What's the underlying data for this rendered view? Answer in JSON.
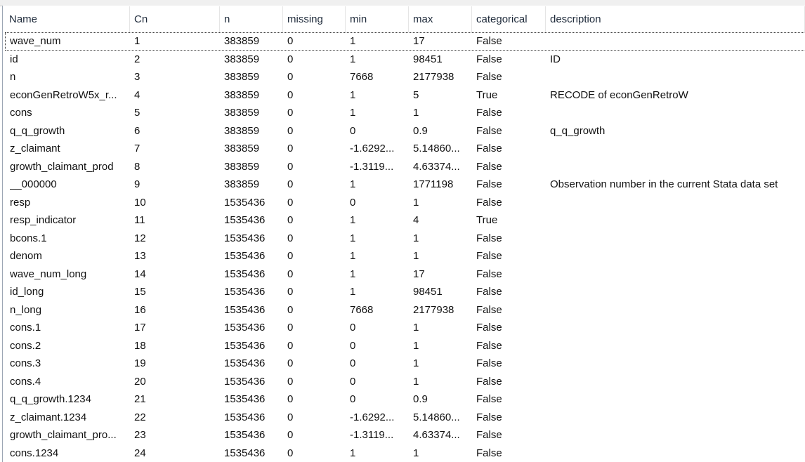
{
  "columns": [
    "Name",
    "Cn",
    "n",
    "missing",
    "min",
    "max",
    "categorical",
    "description"
  ],
  "rows": [
    [
      "wave_num",
      "1",
      "383859",
      "0",
      "1",
      "17",
      "False",
      ""
    ],
    [
      "id",
      "2",
      "383859",
      "0",
      "1",
      "98451",
      "False",
      "ID"
    ],
    [
      "n",
      "3",
      "383859",
      "0",
      "7668",
      "2177938",
      "False",
      ""
    ],
    [
      "econGenRetroW5x_r...",
      "4",
      "383859",
      "0",
      "1",
      "5",
      "True",
      "RECODE of econGenRetroW"
    ],
    [
      "cons",
      "5",
      "383859",
      "0",
      "1",
      "1",
      "False",
      ""
    ],
    [
      "q_q_growth",
      "6",
      "383859",
      "0",
      "0",
      "0.9",
      "False",
      "q_q_growth"
    ],
    [
      "z_claimant",
      "7",
      "383859",
      "0",
      "-1.6292...",
      "5.14860...",
      "False",
      ""
    ],
    [
      "growth_claimant_prod",
      "8",
      "383859",
      "0",
      "-1.3119...",
      "4.63374...",
      "False",
      ""
    ],
    [
      "__000000",
      "9",
      "383859",
      "0",
      "1",
      "1771198",
      "False",
      "Observation number in the current Stata data set"
    ],
    [
      "resp",
      "10",
      "1535436",
      "0",
      "0",
      "1",
      "False",
      ""
    ],
    [
      "resp_indicator",
      "11",
      "1535436",
      "0",
      "1",
      "4",
      "True",
      ""
    ],
    [
      "bcons.1",
      "12",
      "1535436",
      "0",
      "1",
      "1",
      "False",
      ""
    ],
    [
      "denom",
      "13",
      "1535436",
      "0",
      "1",
      "1",
      "False",
      ""
    ],
    [
      "wave_num_long",
      "14",
      "1535436",
      "0",
      "1",
      "17",
      "False",
      ""
    ],
    [
      "id_long",
      "15",
      "1535436",
      "0",
      "1",
      "98451",
      "False",
      ""
    ],
    [
      "n_long",
      "16",
      "1535436",
      "0",
      "7668",
      "2177938",
      "False",
      ""
    ],
    [
      "cons.1",
      "17",
      "1535436",
      "0",
      "0",
      "1",
      "False",
      ""
    ],
    [
      "cons.2",
      "18",
      "1535436",
      "0",
      "0",
      "1",
      "False",
      ""
    ],
    [
      "cons.3",
      "19",
      "1535436",
      "0",
      "0",
      "1",
      "False",
      ""
    ],
    [
      "cons.4",
      "20",
      "1535436",
      "0",
      "0",
      "1",
      "False",
      ""
    ],
    [
      "q_q_growth.1234",
      "21",
      "1535436",
      "0",
      "0",
      "0.9",
      "False",
      ""
    ],
    [
      "z_claimant.1234",
      "22",
      "1535436",
      "0",
      "-1.6292...",
      "5.14860...",
      "False",
      ""
    ],
    [
      "growth_claimant_pro...",
      "23",
      "1535436",
      "0",
      "-1.3119...",
      "4.63374...",
      "False",
      ""
    ],
    [
      "cons.1234",
      "24",
      "1535436",
      "0",
      "1",
      "1",
      "False",
      ""
    ]
  ],
  "selected_row": 0
}
